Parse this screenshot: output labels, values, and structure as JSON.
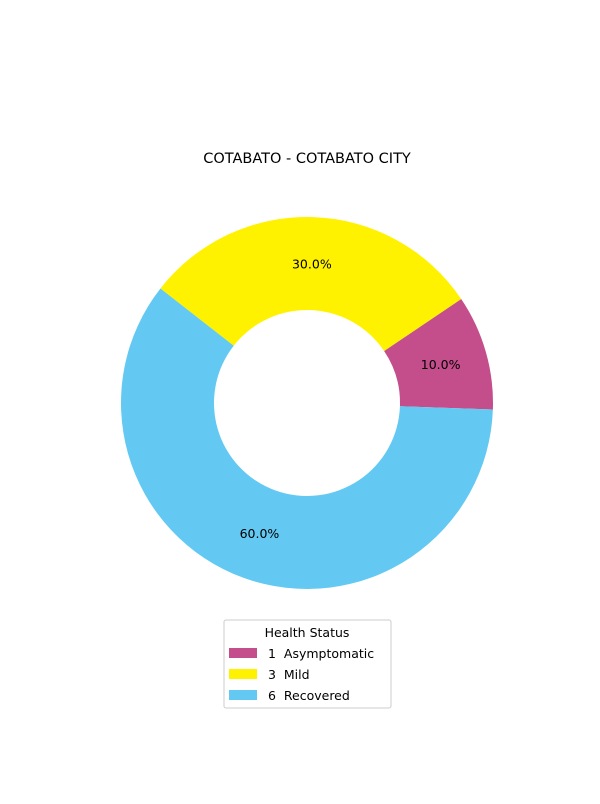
{
  "chart_data": {
    "type": "pie",
    "subtype": "donut",
    "title": "COTABATO - COTABATO CITY",
    "categories": [
      "Asymptomatic",
      "Mild",
      "Recovered"
    ],
    "counts": [
      1,
      3,
      6
    ],
    "values": [
      10.0,
      30.0,
      60.0
    ],
    "percent_labels": [
      "10.0%",
      "30.0%",
      "60.0%"
    ],
    "colors": [
      "#c44e8b",
      "#fff200",
      "#63c9f2"
    ],
    "legend": {
      "title": "Health Status",
      "entries": [
        "1  Asymptomatic",
        "3  Mild",
        "6  Recovered"
      ],
      "placement": "bottom-center"
    }
  }
}
